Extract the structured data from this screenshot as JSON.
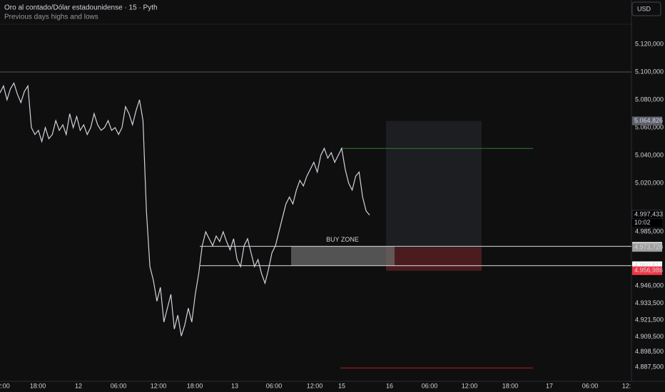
{
  "header": {
    "title": "Oro al contado/Dólar estadounidense · 15 · Pyth",
    "subtitle": "Previous days highs and lows",
    "currency": "USD"
  },
  "chart_data": {
    "type": "line",
    "color": "#d1d4dc",
    "ylim": [
      4877.4,
      5151.8
    ],
    "yticks": [
      {
        "value": 5120,
        "label": "5.120,000"
      },
      {
        "value": 5100,
        "label": "5.100,000"
      },
      {
        "value": 5080,
        "label": "5.080,000"
      },
      {
        "value": 5060,
        "label": "5.060,000"
      },
      {
        "value": 5040,
        "label": "5.040,000"
      },
      {
        "value": 5020,
        "label": "5.020,000"
      },
      {
        "value": 4985,
        "label": "4.985,000"
      },
      {
        "value": 4946,
        "label": "4.946,000"
      },
      {
        "value": 4933.5,
        "label": "4.933,500"
      },
      {
        "value": 4921.5,
        "label": "4.921,500"
      },
      {
        "value": 4909.5,
        "label": "4.909,500"
      },
      {
        "value": 4898.5,
        "label": "4.898,500"
      },
      {
        "value": 4887.5,
        "label": "4.887,500"
      }
    ],
    "xticks": [
      "2:00",
      "18:00",
      "12",
      "06:00",
      "12:00",
      "18:00",
      "13",
      "06:00",
      "12:00",
      "15",
      "16",
      "06:00",
      "12:00",
      "18:00",
      "17",
      "06:00",
      "12:"
    ],
    "values": [
      5085,
      5090,
      5080,
      5088,
      5092,
      5084,
      5078,
      5086,
      5090,
      5060,
      5055,
      5058,
      5050,
      5060,
      5052,
      5055,
      5065,
      5058,
      5062,
      5055,
      5070,
      5060,
      5068,
      5058,
      5062,
      5055,
      5060,
      5070,
      5062,
      5058,
      5060,
      5065,
      5058,
      5060,
      5055,
      5060,
      5075,
      5070,
      5062,
      5072,
      5080,
      5065,
      5000,
      4960,
      4950,
      4935,
      4945,
      4920,
      4930,
      4940,
      4915,
      4925,
      4910,
      4918,
      4930,
      4920,
      4940,
      4955,
      4975,
      4985,
      4980,
      4975,
      4982,
      4978,
      4985,
      4978,
      4972,
      4980,
      4965,
      4960,
      4975,
      4980,
      4970,
      4960,
      4965,
      4955,
      4948,
      4958,
      4970,
      4975,
      4985,
      4995,
      5005,
      5010,
      5005,
      5015,
      5022,
      5018,
      5025,
      5030,
      5035,
      5028,
      5040,
      5045,
      5038,
      5042,
      5035,
      5040,
      5045,
      5030,
      5020,
      5015,
      5025,
      5028,
      5010,
      5000,
      4997
    ],
    "resistance": 5100,
    "buy_zone": {
      "label": "BUY ZONE",
      "top": 4974.514,
      "bottom": 4960.611
    },
    "position": {
      "target": 5064.826,
      "entry": 4973.728,
      "stop": 4956.986
    },
    "high_line": 5045,
    "low_line": 4887,
    "price_tags": [
      {
        "value": 5064.826,
        "label": "5.064,826",
        "kind": "target"
      },
      {
        "value": 4997.433,
        "label": "4.997,433",
        "kind": "last",
        "countdown": "10:02"
      },
      {
        "value": 4974.514,
        "label": "4.974,514",
        "kind": "level"
      },
      {
        "value": 4973.728,
        "label": "4.973,728",
        "kind": "entry"
      },
      {
        "value": 4960.611,
        "label": "4.960,611",
        "kind": "level"
      },
      {
        "value": 4956.986,
        "label": "4.956,986",
        "kind": "stop"
      }
    ]
  }
}
